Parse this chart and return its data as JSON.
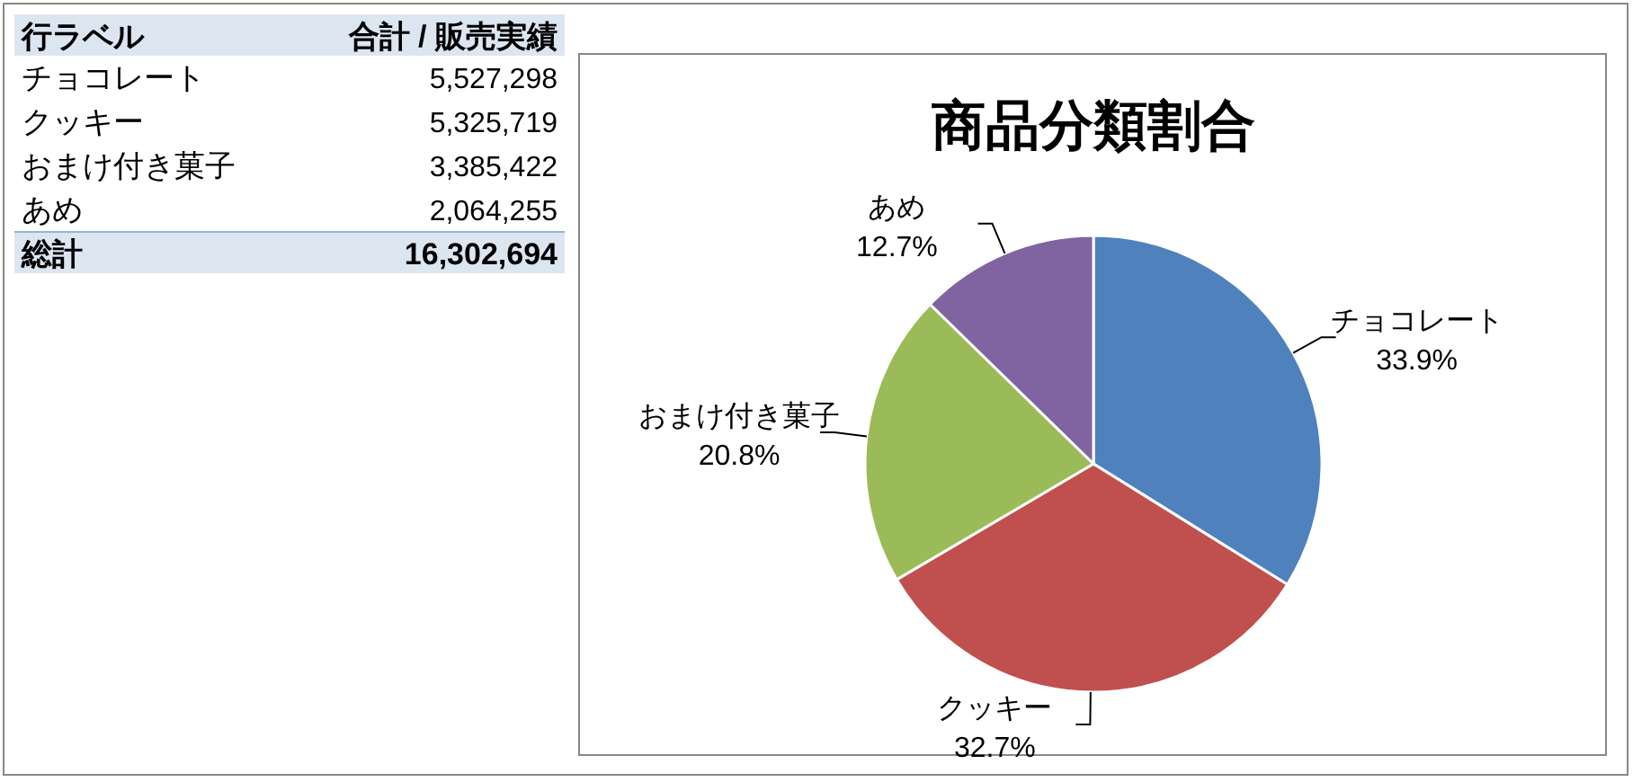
{
  "chart_data": [
    {
      "type": "other",
      "annotations": [
        "行ラベル",
        "合計 / 販売実績",
        "チョコレート",
        "5,527,298",
        "クッキー",
        "5,325,719",
        "おまけ付き菓子",
        "3,385,422",
        "あめ",
        "2,064,255",
        "総計",
        "16,302,694"
      ]
    },
    {
      "type": "pie",
      "title": "商品分類割合",
      "categories": [
        "チョコレート",
        "クッキー",
        "おまけ付き菓子",
        "あめ"
      ],
      "values": [
        33.9,
        32.7,
        20.8,
        12.7
      ],
      "value_labels": [
        "33.9%",
        "32.7%",
        "20.8%",
        "12.7%"
      ],
      "colors": [
        "#4f81bd",
        "#c0504d",
        "#9bbb59",
        "#8064a2"
      ]
    }
  ]
}
